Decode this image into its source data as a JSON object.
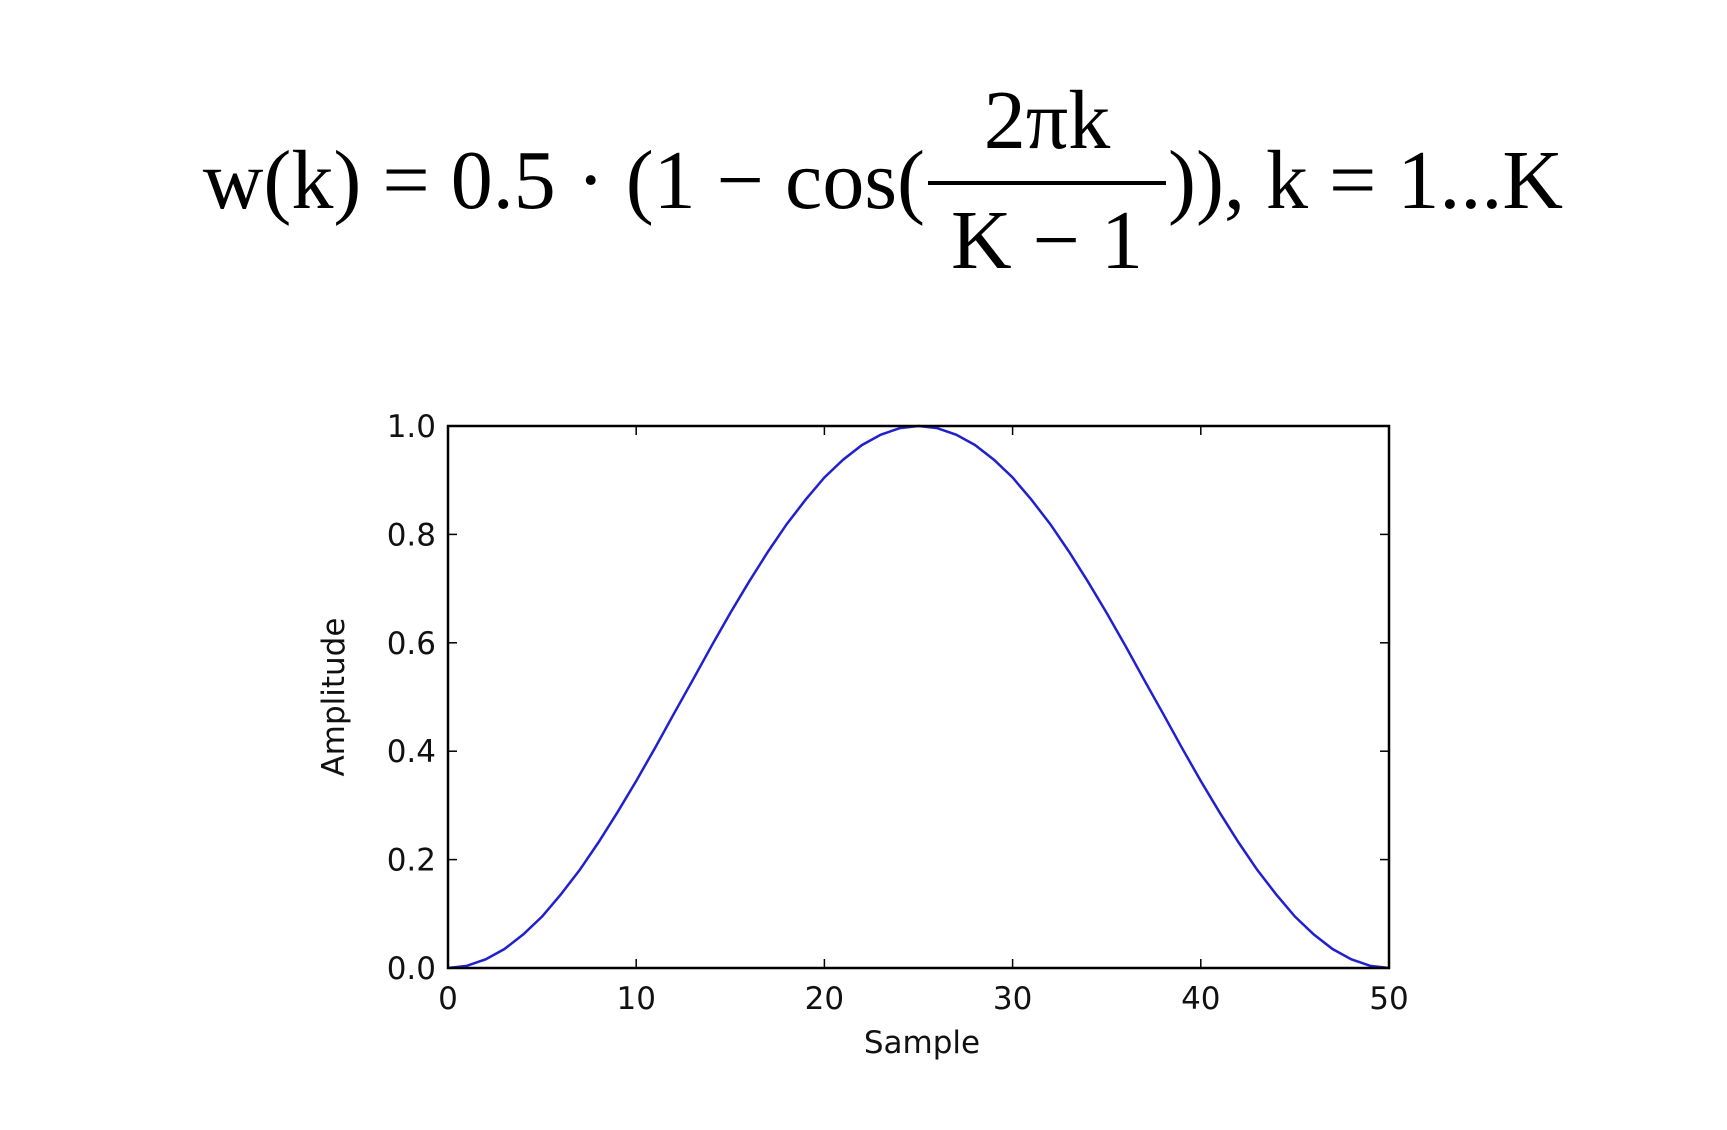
{
  "formula": {
    "lhs": "w(k) = 0.5 · (1 − cos(",
    "numerator": "2πk",
    "denominator": "K − 1",
    "rhs": ")), k = 1...K"
  },
  "chart_data": {
    "type": "line",
    "xlabel": "Sample",
    "ylabel": "Amplitude",
    "x": [
      0,
      1,
      2,
      3,
      4,
      5,
      6,
      7,
      8,
      9,
      10,
      11,
      12,
      13,
      14,
      15,
      16,
      17,
      18,
      19,
      20,
      21,
      22,
      23,
      24,
      25,
      26,
      27,
      28,
      29,
      30,
      31,
      32,
      33,
      34,
      35,
      36,
      37,
      38,
      39,
      40,
      41,
      42,
      43,
      44,
      45,
      46,
      47,
      48,
      49,
      50
    ],
    "series": [
      {
        "color": "#2020d0",
        "values": [
          0,
          0.004,
          0.016,
          0.035,
          0.062,
          0.095,
          0.136,
          0.181,
          0.232,
          0.287,
          0.345,
          0.406,
          0.469,
          0.531,
          0.594,
          0.655,
          0.713,
          0.768,
          0.819,
          0.864,
          0.905,
          0.938,
          0.965,
          0.984,
          0.996,
          1,
          0.996,
          0.984,
          0.965,
          0.938,
          0.905,
          0.864,
          0.819,
          0.768,
          0.713,
          0.655,
          0.594,
          0.531,
          0.469,
          0.406,
          0.345,
          0.287,
          0.232,
          0.181,
          0.136,
          0.095,
          0.062,
          0.035,
          0.016,
          0.004,
          0
        ]
      }
    ],
    "xlim": [
      0,
      50
    ],
    "xticks": [
      0,
      10,
      20,
      30,
      40,
      50
    ],
    "ylim": [
      0,
      1
    ],
    "yticks": [
      {
        "value": 0,
        "label": "0.0"
      },
      0.2,
      0.4,
      0.6,
      0.8,
      {
        "value": 1,
        "label": "1.0"
      }
    ],
    "grid": false
  }
}
